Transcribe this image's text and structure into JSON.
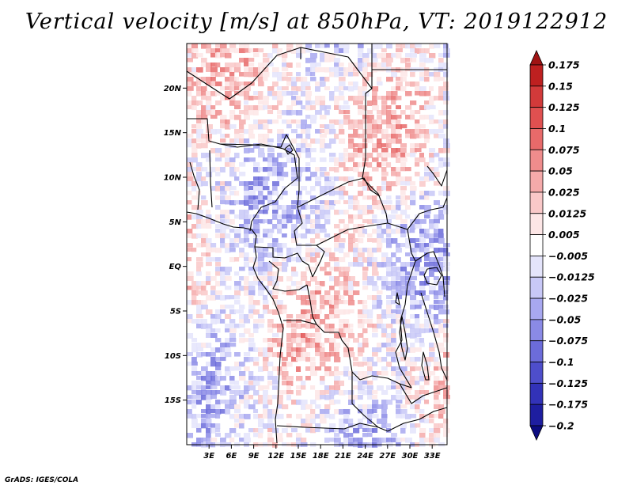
{
  "title": "Vertical velocity [m/s] at 850hPa, VT: 2019122912",
  "credit": "GrADS: IGES/COLA",
  "map": {
    "lon_range": [
      0,
      35
    ],
    "lat_range": [
      -20,
      25
    ],
    "y_ticks": [
      {
        "lat": 20,
        "label": "20N"
      },
      {
        "lat": 15,
        "label": "15N"
      },
      {
        "lat": 10,
        "label": "10N"
      },
      {
        "lat": 5,
        "label": "5N"
      },
      {
        "lat": 0,
        "label": "EQ"
      },
      {
        "lat": -5,
        "label": "5S"
      },
      {
        "lat": -10,
        "label": "10S"
      },
      {
        "lat": -15,
        "label": "15S"
      }
    ],
    "x_ticks": [
      {
        "lon": 3,
        "label": "3E"
      },
      {
        "lon": 6,
        "label": "6E"
      },
      {
        "lon": 9,
        "label": "9E"
      },
      {
        "lon": 12,
        "label": "12E"
      },
      {
        "lon": 15,
        "label": "15E"
      },
      {
        "lon": 18,
        "label": "18E"
      },
      {
        "lon": 21,
        "label": "21E"
      },
      {
        "lon": 24,
        "label": "24E"
      },
      {
        "lon": 27,
        "label": "27E"
      },
      {
        "lon": 30,
        "label": "30E"
      },
      {
        "lon": 33,
        "label": "33E"
      }
    ]
  },
  "colorbar": {
    "labels": [
      "0.175",
      "0.15",
      "0.125",
      "0.1",
      "0.075",
      "0.05",
      "0.025",
      "0.0125",
      "0.005",
      "−0.005",
      "−0.0125",
      "−0.025",
      "−0.05",
      "−0.075",
      "−0.1",
      "−0.125",
      "−0.175",
      "−0.2"
    ],
    "colors": [
      "#a01414",
      "#be2020",
      "#d23a3a",
      "#e05050",
      "#e86a6a",
      "#ef8c8c",
      "#f5aaaa",
      "#f9c8c8",
      "#fde6e6",
      "#ffffff",
      "#e4e4fb",
      "#c8c8f7",
      "#a8a8f0",
      "#8a8ae6",
      "#6c6cda",
      "#4e4ecb",
      "#3232b8",
      "#1e1ea0",
      "#0c0c80"
    ]
  },
  "colors": {
    "border": "#000000",
    "positive": "#e06060",
    "negative": "#6060dd"
  }
}
